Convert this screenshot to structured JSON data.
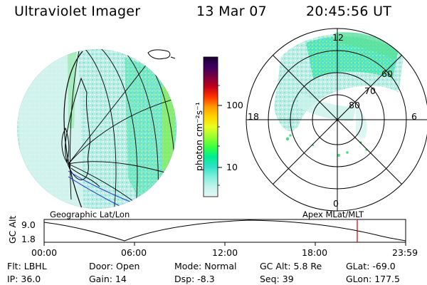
{
  "header": {
    "instrument": "Ultraviolet Imager",
    "date": "13 Mar 07",
    "time": "20:45:56 UT"
  },
  "left_panel": {
    "label": "Geographic Lat/Lon"
  },
  "right_panel": {
    "label": "Apex  MLat/MLT",
    "hour_labels": {
      "top": "12",
      "left": "18",
      "right": "6",
      "bottom": "0"
    },
    "lat_labels": [
      "60",
      "70",
      "80"
    ]
  },
  "colorbar": {
    "unit_label": "photon cm⁻²s⁻¹",
    "tick_100": "100",
    "tick_10": "10",
    "colors": [
      "#1a0033",
      "#3d0060",
      "#7a0040",
      "#c4001a",
      "#ff3300",
      "#ff9a00",
      "#ffd400",
      "#e8ff20",
      "#9bff30",
      "#3cff40",
      "#00ee90",
      "#30e0c8",
      "#80eedc",
      "#c0f4ec",
      "#e6f8f4"
    ],
    "scale": "log"
  },
  "timeline": {
    "axis_label": "GC Alt",
    "y_top": "9.0",
    "y_bottom": "1.8",
    "x_ticks": [
      "00:00",
      "06:00",
      "12:00",
      "18:00",
      "23:59"
    ],
    "marker_color": "#cc0000",
    "marker_time": "20:46"
  },
  "info": {
    "row1": [
      {
        "key": "Flt:",
        "value": "LBHL"
      },
      {
        "key": "Door:",
        "value": "Open"
      },
      {
        "key": "Mode:",
        "value": "Normal"
      },
      {
        "key": "GC Alt:",
        "value": "5.8 Re"
      },
      {
        "key": "GLat:",
        "value": "-69.0"
      }
    ],
    "row2": [
      {
        "key": "IP:",
        "value": "36.0"
      },
      {
        "key": "Gain:",
        "value": "14"
      },
      {
        "key": "Dsp:",
        "value": "-8.3"
      },
      {
        "key": "Seq:",
        "value": "39"
      },
      {
        "key": "GLon:",
        "value": "177.5"
      }
    ]
  }
}
